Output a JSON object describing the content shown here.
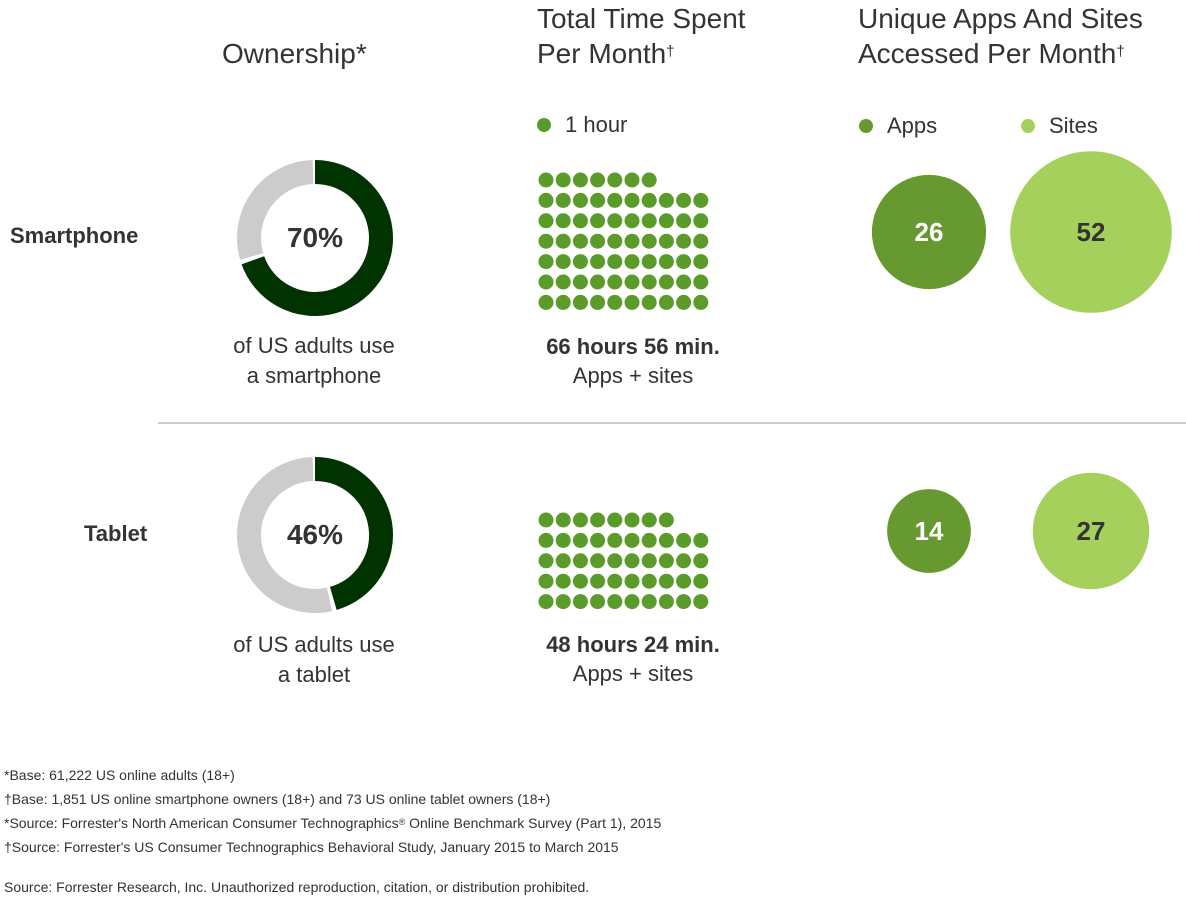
{
  "headers": {
    "ownership": "Ownership*",
    "time_line1": "Total Time Spent",
    "time_line2": "Per Month",
    "time_mark": "†",
    "apps_line1": "Unique Apps And Sites",
    "apps_line2": "Accessed Per Month",
    "apps_mark": "†"
  },
  "legends": {
    "hour": "1 hour",
    "apps": "Apps",
    "sites": "Sites"
  },
  "rows": {
    "smartphone": {
      "label": "Smartphone",
      "pct_label": "70%",
      "caption1": "of US adults use",
      "caption2": "a smartphone",
      "hours_label": "66 hours 56 min.",
      "hours_sub": "Apps + sites",
      "apps_label": "26",
      "sites_label": "52"
    },
    "tablet": {
      "label": "Tablet",
      "pct_label": "46%",
      "caption1": "of US adults use",
      "caption2": "a tablet",
      "hours_label": "48 hours 24 min.",
      "hours_sub": "Apps + sites",
      "apps_label": "14",
      "sites_label": "27"
    }
  },
  "footnotes": {
    "n1": "*Base: 61,222 US online adults (18+)",
    "n2": "†Base: 1,851 US online smartphone owners (18+) and 73 US online tablet owners (18+)",
    "n3a": "*Source: Forrester's North American Consumer Technographics",
    "n3reg": "®",
    "n3b": " Online Benchmark Survey (Part 1), 2015",
    "n4": "†Source: Forrester's US Consumer Technographics Behavioral Study, January 2015 to March 2015",
    "source": "Source: Forrester Research, Inc. Unauthorized reproduction, citation, or distribution prohibited."
  },
  "colors": {
    "owned": "#003300",
    "not_owned": "#cccccc",
    "hour_dot": "#5a9b2a",
    "apps": "#66992f",
    "sites": "#a5d05c",
    "divider": "#cccccc"
  },
  "chart_data": [
    {
      "type": "pie",
      "subtype": "donut",
      "title": "Ownership*",
      "categories": [
        "Smartphone",
        "Tablet"
      ],
      "values": [
        70,
        46
      ],
      "unit": "%"
    },
    {
      "type": "scatter",
      "subtype": "dot-array",
      "title": "Total Time Spent Per Month†",
      "categories": [
        "Smartphone",
        "Tablet"
      ],
      "series": [
        {
          "name": "1 hour",
          "values": [
            67,
            48
          ]
        }
      ],
      "value_labels": [
        "66 hours 56 min.",
        "48 hours 24 min."
      ],
      "unit": "hours"
    },
    {
      "type": "scatter",
      "subtype": "bubble",
      "title": "Unique Apps And Sites Accessed Per Month†",
      "categories": [
        "Smartphone",
        "Tablet"
      ],
      "series": [
        {
          "name": "Apps",
          "values": [
            26,
            14
          ]
        },
        {
          "name": "Sites",
          "values": [
            52,
            27
          ]
        }
      ]
    }
  ]
}
